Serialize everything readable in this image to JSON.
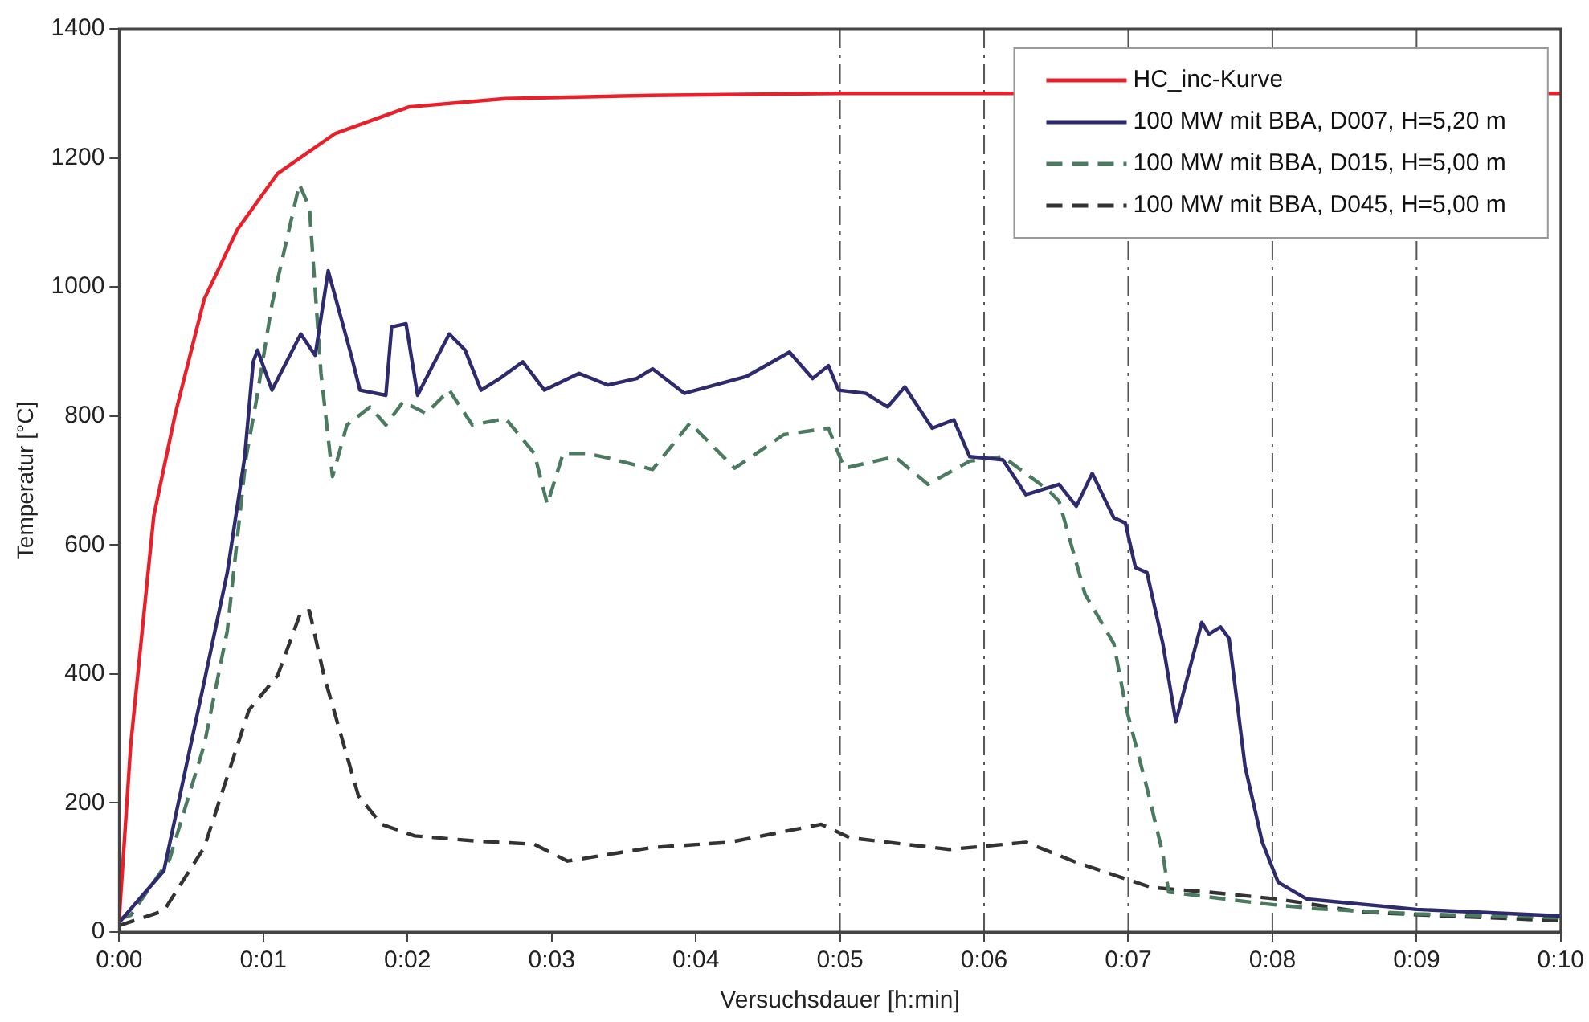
{
  "chart_data": {
    "type": "line",
    "xlabel": "Versuchsdauer [h:min]",
    "ylabel": "Temperatur [°C]",
    "xlim": [
      0,
      10
    ],
    "ylim": [
      0,
      1400
    ],
    "xticks": [
      {
        "value": 0,
        "label": "0:00"
      },
      {
        "value": 1,
        "label": "0:01"
      },
      {
        "value": 2,
        "label": "0:02"
      },
      {
        "value": 3,
        "label": "0:03"
      },
      {
        "value": 4,
        "label": "0:04"
      },
      {
        "value": 5,
        "label": "0:05"
      },
      {
        "value": 6,
        "label": "0:06"
      },
      {
        "value": 7,
        "label": "0:07"
      },
      {
        "value": 8,
        "label": "0:08"
      },
      {
        "value": 9,
        "label": "0:09"
      },
      {
        "value": 10,
        "label": "0:10"
      }
    ],
    "yticks": [
      0,
      200,
      400,
      600,
      800,
      1000,
      1200,
      1400
    ],
    "grid": false,
    "legend": "top right",
    "marker": "none",
    "ref_lines": [
      {
        "axis": "x",
        "value": 5,
        "color": "#555555",
        "line_style": "dashed"
      },
      {
        "axis": "x",
        "value": 6,
        "color": "#555555",
        "line_style": "dashed"
      },
      {
        "axis": "x",
        "value": 7,
        "color": "#555555",
        "line_style": "dashed"
      },
      {
        "axis": "x",
        "value": 8,
        "color": "#555555",
        "line_style": "dashed"
      },
      {
        "axis": "x",
        "value": 9,
        "color": "#555555",
        "line_style": "dashed"
      }
    ],
    "series": [
      {
        "name": "HC_inc-Kurve",
        "color": "#e8202a",
        "line_style": "solid",
        "x": [
          0,
          0.08,
          0.24,
          0.39,
          0.59,
          0.82,
          1.1,
          1.5,
          2.01,
          2.68,
          3.7,
          5,
          10
        ],
        "values": [
          20,
          290,
          645,
          804,
          981,
          1089,
          1176,
          1238,
          1279,
          1292,
          1297,
          1300,
          1300
        ]
      },
      {
        "name": "100 MW mit BBA, D007, H=5,20 m",
        "color": "#2e2a6e",
        "line_style": "solid",
        "x": [
          0,
          0.31,
          0.59,
          0.75,
          0.87,
          0.93,
          0.96,
          1.06,
          1.26,
          1.36,
          1.45,
          1.61,
          1.67,
          1.85,
          1.89,
          1.99,
          2.07,
          2.17,
          2.29,
          2.4,
          2.51,
          2.64,
          2.8,
          2.95,
          3.19,
          3.39,
          3.59,
          3.7,
          3.92,
          4.35,
          4.65,
          4.81,
          4.92,
          4.99,
          5.18,
          5.33,
          5.45,
          5.64,
          5.79,
          5.9,
          6.13,
          6.29,
          6.52,
          6.64,
          6.75,
          6.9,
          6.98,
          7.05,
          7.13,
          7.24,
          7.33,
          7.51,
          7.56,
          7.64,
          7.7,
          7.81,
          7.93,
          8.04,
          8.24,
          9,
          10
        ],
        "values": [
          15,
          95,
          388,
          557,
          735,
          884,
          902,
          840,
          927,
          894,
          1025,
          894,
          840,
          832,
          938,
          943,
          832,
          876,
          927,
          902,
          840,
          858,
          884,
          840,
          866,
          848,
          858,
          873,
          835,
          861,
          899,
          858,
          878,
          840,
          835,
          814,
          845,
          781,
          794,
          737,
          732,
          678,
          694,
          660,
          711,
          642,
          634,
          565,
          557,
          447,
          326,
          480,
          462,
          473,
          455,
          257,
          139,
          77,
          51,
          35,
          25
        ]
      },
      {
        "name": "100 MW mit BBA, D015, H=5,00 m",
        "color": "#4a7a60",
        "line_style": "dashed",
        "x": [
          0,
          0.08,
          0.35,
          0.59,
          0.75,
          0.88,
          0.95,
          1.06,
          1.25,
          1.32,
          1.4,
          1.48,
          1.58,
          1.74,
          1.85,
          1.97,
          2.13,
          2.29,
          2.45,
          2.68,
          2.88,
          2.97,
          3.08,
          3.24,
          3.39,
          3.7,
          3.96,
          4.27,
          4.61,
          4.92,
          5.03,
          5.38,
          5.61,
          5.9,
          6.13,
          6.44,
          6.52,
          6.7,
          6.9,
          6.98,
          7.13,
          7.24,
          7.28,
          7.93,
          8.31,
          9,
          10
        ],
        "values": [
          20,
          26,
          113,
          290,
          467,
          735,
          822,
          973,
          1159,
          1123,
          866,
          706,
          786,
          814,
          786,
          822,
          804,
          840,
          786,
          796,
          742,
          663,
          742,
          742,
          735,
          717,
          789,
          719,
          771,
          781,
          719,
          737,
          694,
          730,
          737,
          686,
          668,
          524,
          447,
          352,
          223,
          121,
          62,
          44,
          36,
          28,
          22
        ]
      },
      {
        "name": "100 MW mit BBA, D045, H=5,00 m",
        "color": "#333333",
        "line_style": "dashed",
        "x": [
          0,
          0.31,
          0.59,
          0.9,
          1.1,
          1.26,
          1.32,
          1.42,
          1.66,
          1.82,
          2.05,
          2.48,
          2.88,
          3.11,
          3.47,
          3.7,
          4.23,
          4.87,
          5.07,
          5.76,
          6.29,
          6.64,
          7.16,
          7.55,
          8.04,
          8.62,
          9.08,
          9.95,
          10
        ],
        "values": [
          10,
          33,
          131,
          344,
          398,
          496,
          498,
          398,
          211,
          167,
          149,
          141,
          136,
          110,
          123,
          131,
          139,
          167,
          146,
          128,
          139,
          108,
          69,
          62,
          51,
          31,
          26,
          18,
          18
        ]
      }
    ]
  }
}
